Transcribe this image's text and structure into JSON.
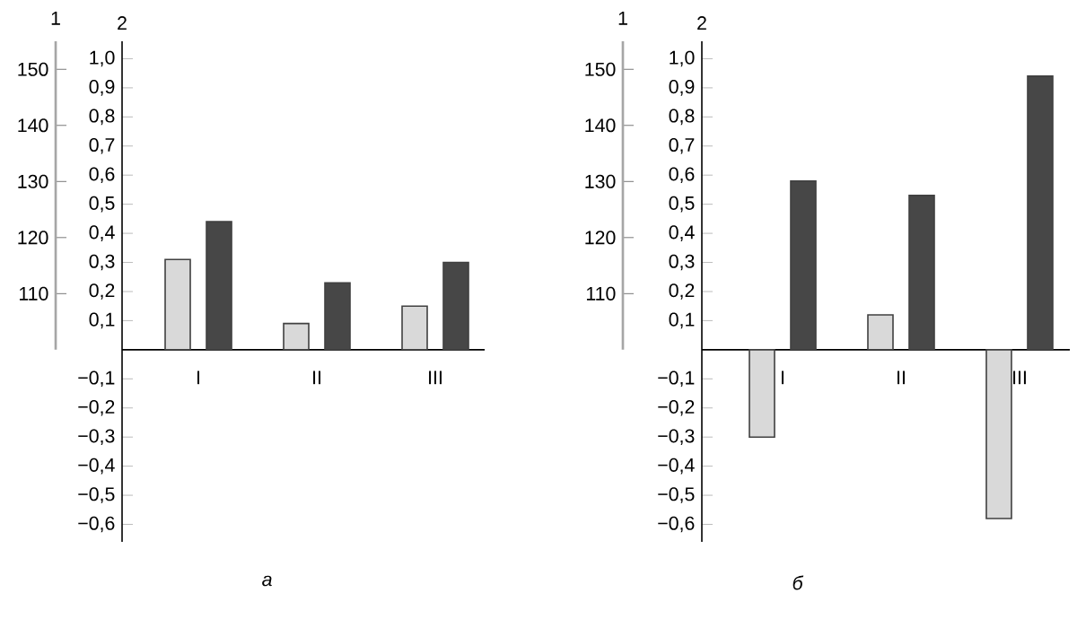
{
  "chart_data": [
    {
      "type": "bar",
      "xlabel": "а",
      "ylabel": "2",
      "y2label": "1",
      "categories": [
        "I",
        "II",
        "III"
      ],
      "series": [
        {
          "color": "#d9d9d9",
          "values": [
            0.31,
            0.09,
            0.15
          ]
        },
        {
          "color": "#474747",
          "values": [
            0.44,
            0.23,
            0.3
          ]
        }
      ],
      "ylim": [
        -0.66,
        1.06
      ],
      "yticks": [
        {
          "value": -0.6,
          "label": "−0,6"
        },
        {
          "value": -0.5,
          "label": "−0,5"
        },
        {
          "value": -0.4,
          "label": "−0,4"
        },
        {
          "value": -0.3,
          "label": "−0,3"
        },
        {
          "value": -0.2,
          "label": "−0,2"
        },
        {
          "value": -0.1,
          "label": "−0,1"
        },
        {
          "value": 0.1,
          "label": "0,1"
        },
        {
          "value": 0.2,
          "label": "0,2"
        },
        {
          "value": 0.3,
          "label": "0,3"
        },
        {
          "value": 0.4,
          "label": "0,4"
        },
        {
          "value": 0.5,
          "label": "0,5"
        },
        {
          "value": 0.6,
          "label": "0,6"
        },
        {
          "value": 0.7,
          "label": "0,7"
        },
        {
          "value": 0.8,
          "label": "0,8"
        },
        {
          "value": 0.9,
          "label": "0,9"
        },
        {
          "value": 1.0,
          "label": "1,0"
        }
      ],
      "y2lim": [
        100,
        155
      ],
      "y2ticks": [
        110,
        120,
        130,
        140,
        150
      ],
      "grid": false
    },
    {
      "type": "bar",
      "xlabel": "б",
      "ylabel": "2",
      "y2label": "1",
      "categories": [
        "I",
        "II",
        "III"
      ],
      "series": [
        {
          "color": "#d9d9d9",
          "values": [
            -0.3,
            0.12,
            -0.58
          ]
        },
        {
          "color": "#474747",
          "values": [
            0.58,
            0.53,
            0.94
          ]
        }
      ],
      "ylim": [
        -0.66,
        1.06
      ],
      "yticks": [
        {
          "value": -0.6,
          "label": "−0,6"
        },
        {
          "value": -0.5,
          "label": "−0,5"
        },
        {
          "value": -0.4,
          "label": "−0,4"
        },
        {
          "value": -0.3,
          "label": "−0,3"
        },
        {
          "value": -0.2,
          "label": "−0,2"
        },
        {
          "value": -0.1,
          "label": "−0,1"
        },
        {
          "value": 0.1,
          "label": "0,1"
        },
        {
          "value": 0.2,
          "label": "0,2"
        },
        {
          "value": 0.3,
          "label": "0,3"
        },
        {
          "value": 0.4,
          "label": "0,4"
        },
        {
          "value": 0.5,
          "label": "0,5"
        },
        {
          "value": 0.6,
          "label": "0,6"
        },
        {
          "value": 0.7,
          "label": "0,7"
        },
        {
          "value": 0.8,
          "label": "0,8"
        },
        {
          "value": 0.9,
          "label": "0,9"
        },
        {
          "value": 1.0,
          "label": "1,0"
        }
      ],
      "y2lim": [
        100,
        155
      ],
      "y2ticks": [
        110,
        120,
        130,
        140,
        150
      ],
      "grid": false
    }
  ]
}
